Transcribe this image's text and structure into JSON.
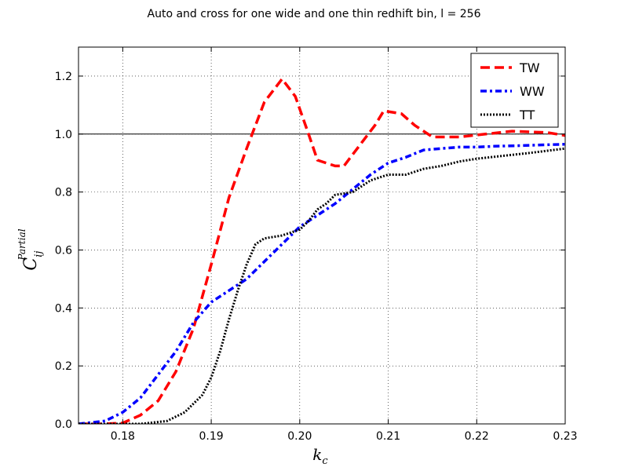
{
  "chart_data": {
    "type": "line",
    "title": "Auto and cross for one wide and one thin redhift bin, l = 256",
    "xlabel": {
      "main": "k",
      "sub": "c"
    },
    "ylabel": {
      "main": "C",
      "sub": "ij",
      "sup": "Partial"
    },
    "xlim": [
      0.175,
      0.23
    ],
    "ylim": [
      0.0,
      1.3
    ],
    "xticks": [
      0.18,
      0.19,
      0.2,
      0.21,
      0.22,
      0.23
    ],
    "xtick_labels": [
      "0.18",
      "0.19",
      "0.20",
      "0.21",
      "0.22",
      "0.23"
    ],
    "yticks": [
      0.0,
      0.2,
      0.4,
      0.6,
      0.8,
      1.0,
      1.2
    ],
    "ytick_labels": [
      "0.0",
      "0.2",
      "0.4",
      "0.6",
      "0.8",
      "1.0",
      "1.2"
    ],
    "grid": true,
    "reference_line": 1.0,
    "legend_position": "top-right",
    "series": [
      {
        "name": "TW",
        "color": "#ff0000",
        "style": "dashed",
        "x": [
          0.175,
          0.178,
          0.18,
          0.182,
          0.184,
          0.186,
          0.188,
          0.19,
          0.192,
          0.194,
          0.196,
          0.198,
          0.1995,
          0.201,
          0.202,
          0.204,
          0.205,
          0.207,
          0.2085,
          0.2095,
          0.2115,
          0.213,
          0.215,
          0.218,
          0.221,
          0.224,
          0.228,
          0.23
        ],
        "y": [
          0.0,
          0.0,
          0.003,
          0.03,
          0.08,
          0.18,
          0.33,
          0.55,
          0.78,
          0.95,
          1.11,
          1.19,
          1.13,
          1.0,
          0.91,
          0.89,
          0.89,
          0.97,
          1.03,
          1.08,
          1.07,
          1.03,
          0.99,
          0.99,
          1.0,
          1.01,
          1.005,
          0.995
        ]
      },
      {
        "name": "WW",
        "color": "#0000ff",
        "style": "dashdot",
        "x": [
          0.175,
          0.178,
          0.18,
          0.182,
          0.184,
          0.186,
          0.188,
          0.19,
          0.192,
          0.194,
          0.196,
          0.198,
          0.2,
          0.202,
          0.204,
          0.206,
          0.208,
          0.21,
          0.212,
          0.214,
          0.216,
          0.218,
          0.22,
          0.222,
          0.225,
          0.228,
          0.23
        ],
        "y": [
          0.0,
          0.01,
          0.04,
          0.09,
          0.17,
          0.25,
          0.35,
          0.42,
          0.46,
          0.5,
          0.56,
          0.62,
          0.68,
          0.72,
          0.76,
          0.81,
          0.86,
          0.9,
          0.92,
          0.945,
          0.95,
          0.955,
          0.955,
          0.958,
          0.96,
          0.963,
          0.965
        ]
      },
      {
        "name": "TT",
        "color": "#000000",
        "style": "dotted",
        "x": [
          0.175,
          0.182,
          0.185,
          0.187,
          0.189,
          0.19,
          0.191,
          0.192,
          0.193,
          0.194,
          0.195,
          0.196,
          0.198,
          0.199,
          0.2,
          0.201,
          0.202,
          0.203,
          0.204,
          0.206,
          0.208,
          0.21,
          0.212,
          0.214,
          0.216,
          0.218,
          0.22,
          0.223,
          0.226,
          0.23
        ],
        "y": [
          0.0,
          0.0,
          0.01,
          0.04,
          0.1,
          0.16,
          0.25,
          0.36,
          0.46,
          0.55,
          0.62,
          0.64,
          0.65,
          0.66,
          0.67,
          0.7,
          0.74,
          0.76,
          0.79,
          0.8,
          0.84,
          0.86,
          0.86,
          0.88,
          0.89,
          0.905,
          0.915,
          0.925,
          0.935,
          0.95
        ]
      }
    ]
  }
}
